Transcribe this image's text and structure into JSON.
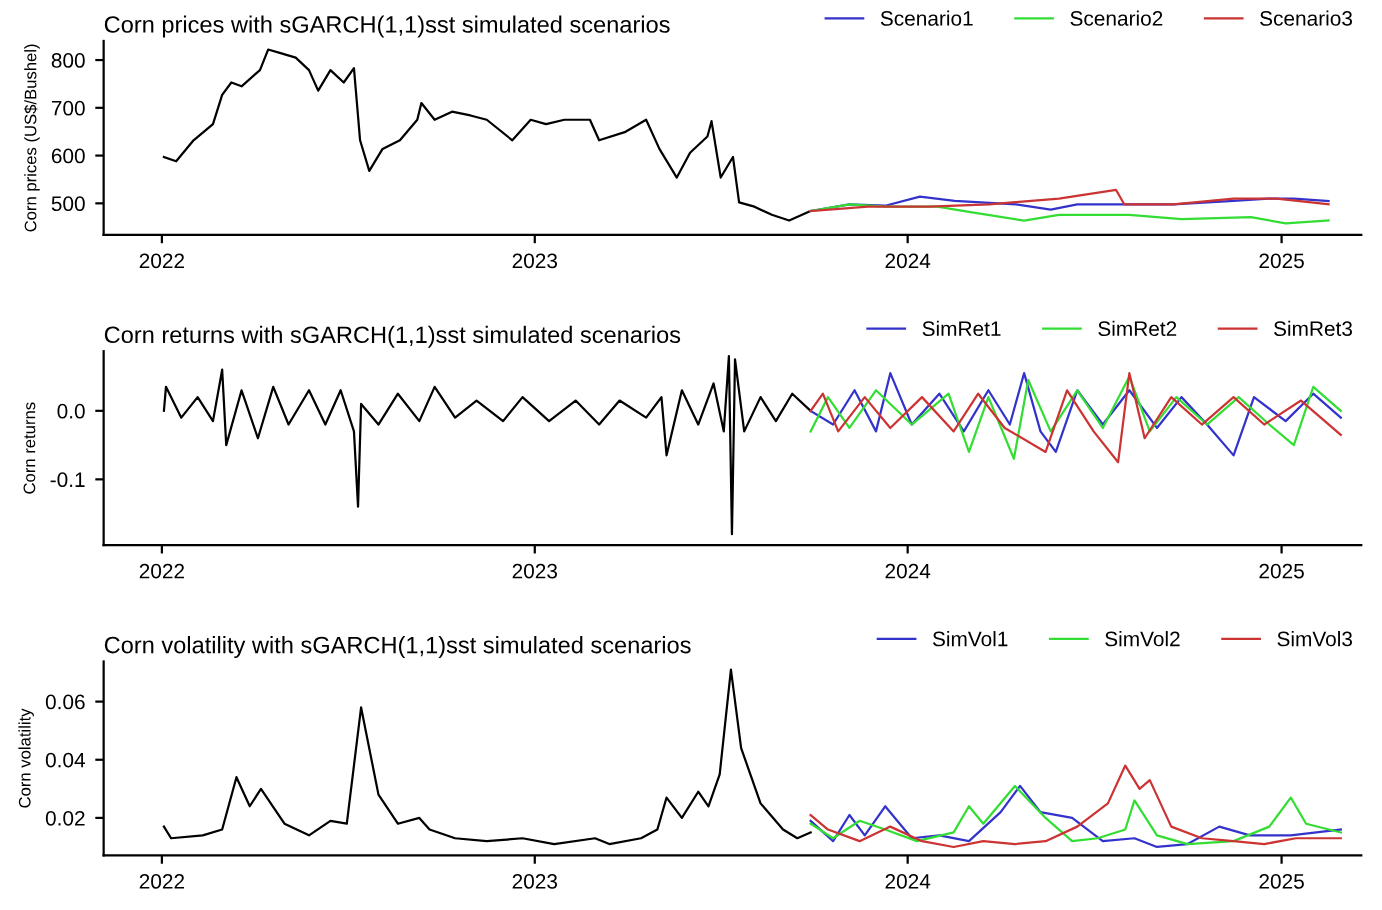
{
  "chart_data": [
    {
      "type": "line",
      "title": "Corn prices with sGARCH(1,1)sst simulated scenarios",
      "ylabel": "Corn prices (US$/Bushel)",
      "xlim": [
        "2021-11-05",
        "2025-03-20"
      ],
      "xticks": [
        {
          "value": "2022-01-01",
          "label": "2022"
        },
        {
          "value": "2023-01-01",
          "label": "2023"
        },
        {
          "value": "2024-01-01",
          "label": "2024"
        },
        {
          "value": "2025-01-01",
          "label": "2025"
        }
      ],
      "ylim": [
        434,
        840
      ],
      "yticks": [
        500,
        600,
        700,
        800
      ],
      "grid": false,
      "legend": "top right",
      "marker": "none",
      "line_style": "solid",
      "series": [
        {
          "color": "#000000",
          "x": [
            "2022-01-03",
            "2022-01-15",
            "2022-02-01",
            "2022-02-20",
            "2022-03-01",
            "2022-03-10",
            "2022-03-20",
            "2022-04-07",
            "2022-04-15",
            "2022-04-28",
            "2022-05-12",
            "2022-05-25",
            "2022-06-03",
            "2022-06-15",
            "2022-06-28",
            "2022-07-08",
            "2022-07-14",
            "2022-07-23",
            "2022-08-05",
            "2022-08-22",
            "2022-09-08",
            "2022-09-12",
            "2022-09-25",
            "2022-10-12",
            "2022-10-30",
            "2022-11-15",
            "2022-12-10",
            "2022-12-28",
            "2023-01-12",
            "2023-01-30",
            "2023-02-24",
            "2023-03-05",
            "2023-03-30",
            "2023-04-20",
            "2023-05-03",
            "2023-05-20",
            "2023-06-02",
            "2023-06-19",
            "2023-06-23",
            "2023-07-02",
            "2023-07-14",
            "2023-07-20",
            "2023-08-04",
            "2023-08-21",
            "2023-09-07",
            "2023-09-28"
          ],
          "values": [
            597,
            588,
            632,
            666,
            727,
            753,
            745,
            779,
            822,
            814,
            805,
            779,
            736,
            779,
            753,
            783,
            632,
            568,
            614,
            632,
            675,
            710,
            675,
            692,
            684,
            675,
            632,
            675,
            666,
            675,
            675,
            632,
            649,
            675,
            614,
            554,
            606,
            640,
            672,
            554,
            597,
            502,
            493,
            476,
            464,
            484
          ]
        },
        {
          "name": "Scenario1",
          "color": "#3333cc",
          "x": [
            "2023-09-28",
            "2023-11-05",
            "2023-12-10",
            "2024-01-13",
            "2024-02-16",
            "2024-04-16",
            "2024-05-20",
            "2024-06-15",
            "2024-08-05",
            "2024-09-17",
            "2024-11-15",
            "2024-12-19",
            "2025-01-13",
            "2025-02-16"
          ],
          "values": [
            484,
            498,
            495,
            514,
            505,
            498,
            487,
            498,
            498,
            498,
            505,
            510,
            510,
            505
          ]
        },
        {
          "name": "Scenario2",
          "color": "#33dd33",
          "x": [
            "2023-09-28",
            "2023-11-05",
            "2023-12-10",
            "2024-01-30",
            "2024-03-04",
            "2024-04-24",
            "2024-05-28",
            "2024-08-05",
            "2024-09-25",
            "2024-12-02",
            "2025-01-05",
            "2025-02-16"
          ],
          "values": [
            484,
            498,
            493,
            493,
            481,
            464,
            476,
            476,
            467,
            471,
            458,
            464
          ]
        },
        {
          "name": "Scenario3",
          "color": "#cc3333",
          "x": [
            "2023-09-28",
            "2023-11-23",
            "2024-01-22",
            "2024-03-21",
            "2024-05-28",
            "2024-07-23",
            "2024-07-31",
            "2024-09-17",
            "2024-11-15",
            "2024-12-27",
            "2025-02-16"
          ],
          "values": [
            484,
            493,
            493,
            498,
            510,
            528,
            498,
            498,
            510,
            510,
            498
          ]
        }
      ]
    },
    {
      "type": "line",
      "title": "Corn returns with sGARCH(1,1)sst simulated scenarios",
      "ylabel": "Corn returns",
      "xlim": [
        "2021-11-05",
        "2025-03-20"
      ],
      "xticks": [
        {
          "value": "2022-01-01",
          "label": "2022"
        },
        {
          "value": "2023-01-01",
          "label": "2023"
        },
        {
          "value": "2024-01-01",
          "label": "2024"
        },
        {
          "value": "2025-01-01",
          "label": "2025"
        }
      ],
      "ylim": [
        -0.196,
        0.087
      ],
      "yticks": [
        {
          "value": -0.1,
          "label": "-0.1"
        },
        {
          "value": 0.0,
          "label": "0.0"
        }
      ],
      "grid": false,
      "legend": "top right",
      "marker": "none",
      "line_style": "solid",
      "series": [
        {
          "color": "#000000",
          "x": [
            "2022-01-03",
            "2022-01-05",
            "2022-01-20",
            "2022-02-05",
            "2022-02-20",
            "2022-03-01",
            "2022-03-05",
            "2022-03-20",
            "2022-04-05",
            "2022-04-20",
            "2022-05-05",
            "2022-05-25",
            "2022-06-10",
            "2022-06-25",
            "2022-07-08",
            "2022-07-12",
            "2022-07-15",
            "2022-08-01",
            "2022-08-20",
            "2022-09-10",
            "2022-09-25",
            "2022-10-15",
            "2022-11-05",
            "2022-12-01",
            "2022-12-20",
            "2023-01-15",
            "2023-02-10",
            "2023-03-05",
            "2023-03-25",
            "2023-04-20",
            "2023-05-05",
            "2023-05-10",
            "2023-05-25",
            "2023-06-10",
            "2023-06-25",
            "2023-07-05",
            "2023-07-10",
            "2023-07-13",
            "2023-07-16",
            "2023-07-25",
            "2023-08-10",
            "2023-08-25",
            "2023-09-10",
            "2023-09-28"
          ],
          "values": [
            0.0,
            0.035,
            -0.01,
            0.02,
            -0.015,
            0.06,
            -0.05,
            0.03,
            -0.04,
            0.035,
            -0.02,
            0.03,
            -0.02,
            0.03,
            -0.03,
            -0.14,
            0.01,
            -0.02,
            0.025,
            -0.015,
            0.035,
            -0.01,
            0.015,
            -0.015,
            0.02,
            -0.015,
            0.015,
            -0.02,
            0.015,
            -0.01,
            0.02,
            -0.065,
            0.03,
            -0.02,
            0.04,
            -0.03,
            0.08,
            -0.18,
            0.075,
            -0.03,
            0.02,
            -0.015,
            0.025,
            0.0
          ]
        },
        {
          "name": "SimRet1",
          "color": "#3333cc",
          "x": [
            "2023-09-28",
            "2023-10-20",
            "2023-11-10",
            "2023-12-01",
            "2023-12-15",
            "2024-01-05",
            "2024-02-01",
            "2024-02-25",
            "2024-03-20",
            "2024-04-10",
            "2024-04-24",
            "2024-05-10",
            "2024-05-25",
            "2024-06-15",
            "2024-07-10",
            "2024-08-05",
            "2024-09-01",
            "2024-09-25",
            "2024-10-20",
            "2024-11-15",
            "2024-12-05",
            "2025-01-05",
            "2025-02-01",
            "2025-02-28"
          ],
          "values": [
            0.0,
            -0.02,
            0.03,
            -0.03,
            0.055,
            -0.02,
            0.025,
            -0.03,
            0.03,
            -0.02,
            0.055,
            -0.03,
            -0.06,
            0.03,
            -0.02,
            0.03,
            -0.025,
            0.02,
            -0.02,
            -0.065,
            0.02,
            -0.015,
            0.025,
            -0.01
          ]
        },
        {
          "name": "SimRet2",
          "color": "#33dd33",
          "x": [
            "2023-09-28",
            "2023-10-15",
            "2023-11-05",
            "2023-12-01",
            "2024-01-05",
            "2024-02-10",
            "2024-03-01",
            "2024-03-20",
            "2024-04-14",
            "2024-04-28",
            "2024-05-20",
            "2024-06-15",
            "2024-07-10",
            "2024-08-05",
            "2024-08-25",
            "2024-09-20",
            "2024-10-20",
            "2024-11-20",
            "2024-12-20",
            "2025-01-13",
            "2025-02-01",
            "2025-02-28"
          ],
          "values": [
            -0.03,
            0.02,
            -0.025,
            0.03,
            -0.02,
            0.025,
            -0.06,
            0.02,
            -0.07,
            0.045,
            -0.03,
            0.03,
            -0.025,
            0.05,
            -0.03,
            0.02,
            -0.02,
            0.02,
            -0.02,
            -0.05,
            0.035,
            0.0
          ]
        },
        {
          "name": "SimRet3",
          "color": "#cc3333",
          "x": [
            "2023-09-28",
            "2023-10-10",
            "2023-10-25",
            "2023-11-20",
            "2023-12-15",
            "2024-01-15",
            "2024-02-15",
            "2024-03-10",
            "2024-04-05",
            "2024-05-15",
            "2024-06-05",
            "2024-07-01",
            "2024-07-25",
            "2024-08-05",
            "2024-08-20",
            "2024-09-15",
            "2024-10-15",
            "2024-11-15",
            "2024-12-15",
            "2025-01-20",
            "2025-02-28"
          ],
          "values": [
            0.0,
            0.025,
            -0.03,
            0.02,
            -0.025,
            0.02,
            -0.03,
            0.025,
            -0.025,
            -0.06,
            0.03,
            -0.03,
            -0.075,
            0.055,
            -0.04,
            0.02,
            -0.02,
            0.02,
            -0.02,
            0.015,
            -0.035
          ]
        }
      ]
    },
    {
      "type": "line",
      "title": "Corn volatility with sGARCH(1,1)sst simulated scenarios",
      "ylabel": "Corn volatility",
      "xlim": [
        "2021-11-05",
        "2025-03-20"
      ],
      "xticks": [
        {
          "value": "2022-01-01",
          "label": "2022"
        },
        {
          "value": "2023-01-01",
          "label": "2023"
        },
        {
          "value": "2024-01-01",
          "label": "2024"
        },
        {
          "value": "2025-01-01",
          "label": "2025"
        }
      ],
      "ylim": [
        0.0071,
        0.0738
      ],
      "yticks": [
        0.02,
        0.04,
        0.06
      ],
      "grid": false,
      "legend": "top right",
      "marker": "none",
      "line_style": "solid",
      "series": [
        {
          "color": "#000000",
          "x": [
            "2022-01-03",
            "2022-01-10",
            "2022-02-10",
            "2022-03-01",
            "2022-03-15",
            "2022-03-28",
            "2022-04-08",
            "2022-05-01",
            "2022-05-25",
            "2022-06-15",
            "2022-07-01",
            "2022-07-15",
            "2022-08-01",
            "2022-08-20",
            "2022-09-10",
            "2022-09-20",
            "2022-10-15",
            "2022-11-15",
            "2022-12-20",
            "2023-01-20",
            "2023-03-01",
            "2023-03-15",
            "2023-04-15",
            "2023-05-01",
            "2023-05-10",
            "2023-05-25",
            "2023-06-10",
            "2023-06-20",
            "2023-07-01",
            "2023-07-12",
            "2023-07-22",
            "2023-08-10",
            "2023-09-01",
            "2023-09-15",
            "2023-09-28"
          ],
          "values": [
            0.017,
            0.013,
            0.014,
            0.016,
            0.034,
            0.024,
            0.03,
            0.018,
            0.014,
            0.019,
            0.018,
            0.058,
            0.028,
            0.018,
            0.02,
            0.016,
            0.013,
            0.012,
            0.013,
            0.011,
            0.013,
            0.011,
            0.013,
            0.016,
            0.027,
            0.02,
            0.029,
            0.024,
            0.035,
            0.071,
            0.044,
            0.025,
            0.016,
            0.013,
            0.015
          ]
        },
        {
          "name": "SimVol1",
          "color": "#3333cc",
          "x": [
            "2023-09-28",
            "2023-10-20",
            "2023-11-05",
            "2023-11-20",
            "2023-12-10",
            "2024-01-05",
            "2024-02-01",
            "2024-03-01",
            "2024-04-01",
            "2024-04-20",
            "2024-05-10",
            "2024-06-10",
            "2024-07-10",
            "2024-08-10",
            "2024-09-01",
            "2024-10-01",
            "2024-11-01",
            "2024-12-01",
            "2025-01-10",
            "2025-02-28"
          ],
          "values": [
            0.019,
            0.012,
            0.021,
            0.014,
            0.024,
            0.013,
            0.014,
            0.012,
            0.022,
            0.031,
            0.022,
            0.02,
            0.012,
            0.013,
            0.01,
            0.011,
            0.017,
            0.014,
            0.014,
            0.016
          ]
        },
        {
          "name": "SimVol2",
          "color": "#33dd33",
          "x": [
            "2023-09-28",
            "2023-10-20",
            "2023-11-15",
            "2023-12-10",
            "2024-01-10",
            "2024-02-15",
            "2024-03-01",
            "2024-03-15",
            "2024-04-15",
            "2024-05-15",
            "2024-06-10",
            "2024-07-05",
            "2024-08-01",
            "2024-08-10",
            "2024-09-01",
            "2024-10-01",
            "2024-11-15",
            "2024-12-20",
            "2025-01-10",
            "2025-01-25",
            "2025-02-28"
          ],
          "values": [
            0.018,
            0.013,
            0.019,
            0.016,
            0.012,
            0.015,
            0.024,
            0.018,
            0.031,
            0.02,
            0.012,
            0.013,
            0.016,
            0.026,
            0.014,
            0.011,
            0.012,
            0.017,
            0.027,
            0.018,
            0.015
          ]
        },
        {
          "name": "SimVol3",
          "color": "#cc3333",
          "x": [
            "2023-09-28",
            "2023-10-15",
            "2023-11-15",
            "2023-12-15",
            "2024-01-15",
            "2024-02-15",
            "2024-03-15",
            "2024-04-15",
            "2024-05-15",
            "2024-06-15",
            "2024-07-15",
            "2024-08-01",
            "2024-08-15",
            "2024-08-25",
            "2024-09-15",
            "2024-10-15",
            "2024-11-15",
            "2024-12-15",
            "2025-01-15",
            "2025-02-28"
          ],
          "values": [
            0.021,
            0.016,
            0.012,
            0.017,
            0.012,
            0.01,
            0.012,
            0.011,
            0.012,
            0.017,
            0.025,
            0.038,
            0.03,
            0.033,
            0.017,
            0.013,
            0.012,
            0.011,
            0.013,
            0.013
          ]
        }
      ]
    }
  ]
}
